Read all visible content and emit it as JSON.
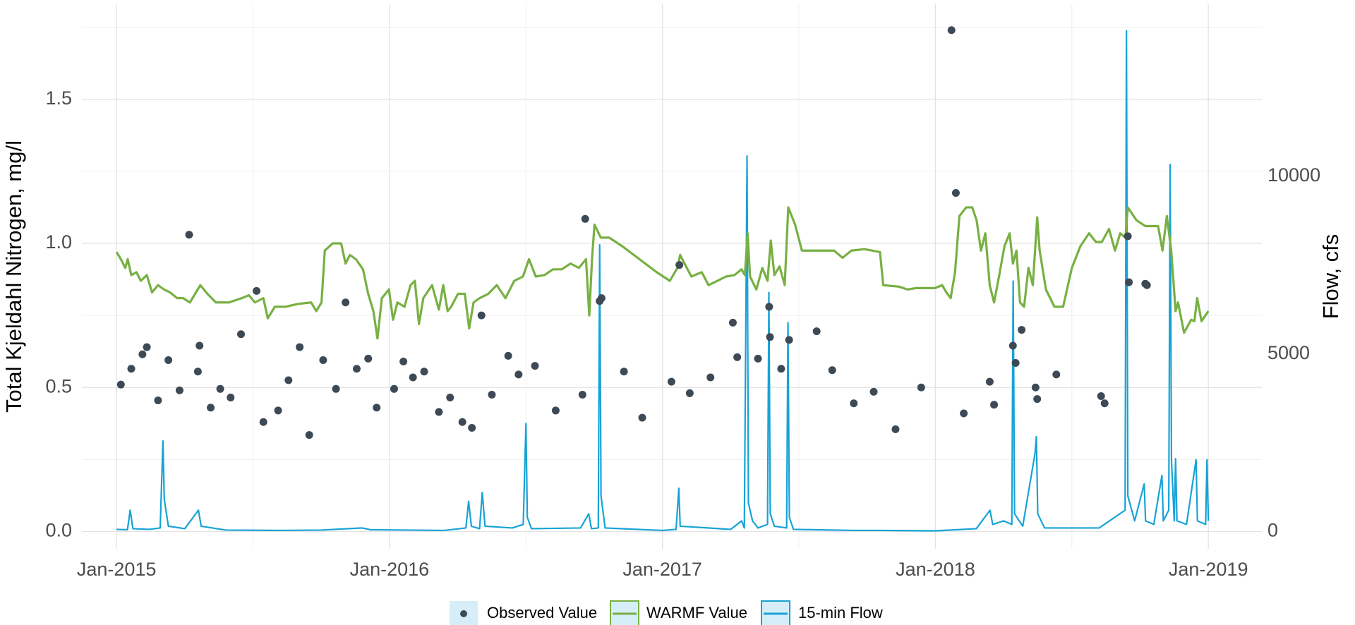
{
  "chart_data": {
    "type": "line",
    "y_title": "Total Kjeldahl Nitrogen, mg/l",
    "y2_title": "Flow, cfs",
    "xlim": [
      2014.873,
      2019.196
    ],
    "xticks": [
      {
        "value": 2015,
        "label": "Jan-2015"
      },
      {
        "value": 2016,
        "label": "Jan-2016"
      },
      {
        "value": 2017,
        "label": "Jan-2017"
      },
      {
        "value": 2018,
        "label": "Jan-2018"
      },
      {
        "value": 2019,
        "label": "Jan-2019"
      }
    ],
    "x_minor_grid": [
      2015.5,
      2016.5,
      2017.5,
      2018.5
    ],
    "ylim": [
      -0.06,
      1.83
    ],
    "yticks": [
      {
        "value": 0,
        "label": "0.0"
      },
      0.5,
      {
        "value": 1,
        "label": "1.0"
      },
      1.5
    ],
    "y_minor_grid": [
      0.25,
      0.75,
      1.25,
      1.75
    ],
    "y2lim": [
      -487,
      14842
    ],
    "y2ticks": [
      0,
      5000,
      10000
    ],
    "grid": true,
    "legend": "bottom",
    "series": [
      {
        "name": "Observed Value",
        "mark": "point",
        "color": "#3d4a56",
        "x": [
          2015.016,
          2015.054,
          2015.095,
          2015.111,
          2015.152,
          2015.19,
          2015.231,
          2015.266,
          2015.298,
          2015.304,
          2015.345,
          2015.38,
          2015.418,
          2015.456,
          2015.513,
          2015.538,
          2015.592,
          2015.63,
          2015.671,
          2015.706,
          2015.757,
          2015.804,
          2015.839,
          2015.88,
          2015.922,
          2015.953,
          2016.017,
          2016.051,
          2016.086,
          2016.127,
          2016.181,
          2016.222,
          2016.267,
          2016.302,
          2016.337,
          2016.375,
          2016.435,
          2016.473,
          2016.533,
          2016.609,
          2016.707,
          2016.717,
          2016.77,
          2016.777,
          2016.859,
          2016.926,
          2017.033,
          2017.062,
          2017.1,
          2017.176,
          2017.258,
          2017.274,
          2017.35,
          2017.391,
          2017.394,
          2017.435,
          2017.464,
          2017.565,
          2017.622,
          2017.701,
          2017.774,
          2017.854,
          2017.948,
          2018.059,
          2018.075,
          2018.104,
          2018.199,
          2018.215,
          2018.284,
          2018.294,
          2018.316,
          2018.367,
          2018.373,
          2018.443,
          2018.607,
          2018.62,
          2018.705,
          2018.709,
          2018.769,
          2018.775
        ],
        "values": [
          0.51,
          0.565,
          0.615,
          0.64,
          0.455,
          0.595,
          0.49,
          1.03,
          0.555,
          0.645,
          0.43,
          0.495,
          0.465,
          0.685,
          0.835,
          0.38,
          0.42,
          0.525,
          0.64,
          0.335,
          0.595,
          0.495,
          0.795,
          0.565,
          0.6,
          0.43,
          0.495,
          0.59,
          0.535,
          0.555,
          0.415,
          0.465,
          0.38,
          0.36,
          0.75,
          0.475,
          0.61,
          0.545,
          0.575,
          0.42,
          0.475,
          1.085,
          0.8,
          0.81,
          0.555,
          0.395,
          0.52,
          0.925,
          0.48,
          0.535,
          0.725,
          0.605,
          0.6,
          0.78,
          0.675,
          0.565,
          0.665,
          0.695,
          0.56,
          0.445,
          0.485,
          0.355,
          0.5,
          1.74,
          1.175,
          0.41,
          0.52,
          0.44,
          0.645,
          0.585,
          0.7,
          0.5,
          0.46,
          0.545,
          0.47,
          0.445,
          1.025,
          0.865,
          0.86,
          0.855
        ]
      },
      {
        "name": "WARMF Value",
        "mark": "line",
        "color": "#78b043",
        "x": [
          2015.0,
          2015.016,
          2015.032,
          2015.041,
          2015.054,
          2015.073,
          2015.089,
          2015.111,
          2015.13,
          2015.152,
          2015.174,
          2015.196,
          2015.222,
          2015.244,
          2015.269,
          2015.288,
          2015.307,
          2015.333,
          2015.364,
          2015.412,
          2015.459,
          2015.485,
          2015.507,
          2015.538,
          2015.554,
          2015.58,
          2015.618,
          2015.665,
          2015.713,
          2015.732,
          2015.751,
          2015.763,
          2015.792,
          2015.823,
          2015.839,
          2015.855,
          2015.877,
          2015.903,
          2015.922,
          2015.941,
          2015.956,
          2015.972,
          2015.998,
          2016.013,
          2016.029,
          2016.055,
          2016.077,
          2016.093,
          2016.108,
          2016.124,
          2016.156,
          2016.181,
          2016.197,
          2016.213,
          2016.226,
          2016.251,
          2016.276,
          2016.292,
          2016.308,
          2016.33,
          2016.362,
          2016.393,
          2016.425,
          2016.457,
          2016.489,
          2016.511,
          2016.536,
          2016.568,
          2016.599,
          2016.631,
          2016.663,
          2016.694,
          2016.72,
          2016.732,
          2016.742,
          2016.751,
          2016.774,
          2016.805,
          2016.853,
          2016.916,
          2016.979,
          2017.027,
          2017.055,
          2017.065,
          2017.081,
          2017.106,
          2017.144,
          2017.169,
          2017.201,
          2017.233,
          2017.264,
          2017.29,
          2017.302,
          2017.312,
          2017.321,
          2017.344,
          2017.366,
          2017.385,
          2017.397,
          2017.41,
          2017.429,
          2017.448,
          2017.461,
          2017.486,
          2017.511,
          2017.549,
          2017.587,
          2017.629,
          2017.66,
          2017.692,
          2017.74,
          2017.797,
          2017.809,
          2017.866,
          2017.898,
          2017.93,
          2017.977,
          2017.999,
          2018.025,
          2018.04,
          2018.056,
          2018.072,
          2018.088,
          2018.113,
          2018.135,
          2018.151,
          2018.167,
          2018.183,
          2018.199,
          2018.215,
          2018.234,
          2018.253,
          2018.272,
          2018.284,
          2018.297,
          2018.31,
          2018.325,
          2018.341,
          2018.357,
          2018.373,
          2018.382,
          2018.405,
          2018.436,
          2018.468,
          2018.5,
          2018.531,
          2018.563,
          2018.588,
          2018.61,
          2018.636,
          2018.658,
          2018.677,
          2018.696,
          2018.705,
          2018.737,
          2018.769,
          2018.816,
          2018.832,
          2018.848,
          2018.864,
          2018.88,
          2018.889,
          2018.911,
          2018.937,
          2018.949,
          2018.959,
          2018.975,
          2019.0
        ],
        "values": [
          0.97,
          0.945,
          0.915,
          0.945,
          0.89,
          0.9,
          0.87,
          0.89,
          0.83,
          0.855,
          0.84,
          0.83,
          0.81,
          0.81,
          0.795,
          0.825,
          0.855,
          0.825,
          0.795,
          0.795,
          0.81,
          0.82,
          0.795,
          0.81,
          0.74,
          0.78,
          0.78,
          0.79,
          0.795,
          0.765,
          0.795,
          0.975,
          1.0,
          1.0,
          0.93,
          0.96,
          0.945,
          0.91,
          0.825,
          0.765,
          0.67,
          0.81,
          0.84,
          0.735,
          0.795,
          0.78,
          0.855,
          0.87,
          0.72,
          0.81,
          0.855,
          0.77,
          0.855,
          0.765,
          0.78,
          0.825,
          0.825,
          0.705,
          0.795,
          0.81,
          0.825,
          0.855,
          0.81,
          0.87,
          0.885,
          0.945,
          0.885,
          0.89,
          0.91,
          0.91,
          0.93,
          0.915,
          0.945,
          0.75,
          0.945,
          1.065,
          1.02,
          1.02,
          0.99,
          0.945,
          0.9,
          0.87,
          0.915,
          0.96,
          0.93,
          0.885,
          0.9,
          0.855,
          0.87,
          0.885,
          0.89,
          0.91,
          0.89,
          1.035,
          0.885,
          0.84,
          0.915,
          0.87,
          1.01,
          0.89,
          0.92,
          0.855,
          1.125,
          1.065,
          0.975,
          0.975,
          0.975,
          0.975,
          0.95,
          0.975,
          0.98,
          0.97,
          0.855,
          0.85,
          0.84,
          0.845,
          0.845,
          0.845,
          0.855,
          0.83,
          0.81,
          0.9,
          1.095,
          1.125,
          1.125,
          1.08,
          0.975,
          1.035,
          0.855,
          0.795,
          0.89,
          0.99,
          1.035,
          0.93,
          0.975,
          0.795,
          0.78,
          0.915,
          0.855,
          1.09,
          0.975,
          0.84,
          0.78,
          0.78,
          0.915,
          0.99,
          1.035,
          1.005,
          1.005,
          1.05,
          0.975,
          1.035,
          1.02,
          1.125,
          1.08,
          1.06,
          1.06,
          0.975,
          1.095,
          0.975,
          0.765,
          0.795,
          0.69,
          0.735,
          0.73,
          0.81,
          0.73,
          0.765
        ]
      },
      {
        "name": "15-min Flow",
        "mark": "line",
        "axis": "y2",
        "color": "#17a3d6",
        "x": [
          2015.0,
          2015.04,
          2015.05,
          2015.06,
          2015.12,
          2015.16,
          2015.17,
          2015.175,
          2015.19,
          2015.25,
          2015.3,
          2015.31,
          2015.4,
          2015.6,
          2015.75,
          2015.9,
          2015.93,
          2016.2,
          2016.28,
          2016.29,
          2016.3,
          2016.33,
          2016.34,
          2016.35,
          2016.45,
          2016.49,
          2016.5,
          2016.505,
          2016.52,
          2016.7,
          2016.73,
          2016.74,
          2016.765,
          2016.77,
          2016.775,
          2016.79,
          2017.0,
          2017.05,
          2017.06,
          2017.065,
          2017.25,
          2017.29,
          2017.3,
          2017.31,
          2017.315,
          2017.33,
          2017.35,
          2017.385,
          2017.39,
          2017.395,
          2017.41,
          2017.455,
          2017.46,
          2017.465,
          2017.48,
          2017.7,
          2017.8,
          2018.0,
          2018.15,
          2018.2,
          2018.21,
          2018.25,
          2018.28,
          2018.285,
          2018.29,
          2018.32,
          2018.365,
          2018.37,
          2018.375,
          2018.4,
          2018.55,
          2018.6,
          2018.695,
          2018.7,
          2018.705,
          2018.73,
          2018.765,
          2018.77,
          2018.8,
          2018.83,
          2018.835,
          2018.855,
          2018.86,
          2018.865,
          2018.875,
          2018.88,
          2018.885,
          2018.92,
          2018.955,
          2018.96,
          2018.99,
          2018.995,
          2019.0
        ],
        "values": [
          60,
          50,
          600,
          80,
          60,
          100,
          2550,
          900,
          150,
          80,
          600,
          150,
          40,
          30,
          40,
          100,
          50,
          30,
          100,
          850,
          150,
          80,
          1100,
          150,
          100,
          200,
          3040,
          400,
          80,
          100,
          500,
          80,
          100,
          8070,
          1000,
          100,
          30,
          60,
          1215,
          150,
          60,
          300,
          100,
          10570,
          800,
          300,
          100,
          200,
          6730,
          500,
          150,
          100,
          5880,
          400,
          60,
          30,
          30,
          20,
          80,
          600,
          200,
          300,
          200,
          7050,
          500,
          150,
          2200,
          2670,
          500,
          100,
          100,
          100,
          600,
          14100,
          1000,
          300,
          1340,
          300,
          200,
          1580,
          300,
          600,
          10330,
          2000,
          300,
          2050,
          300,
          200,
          2020,
          300,
          200,
          2020,
          300
        ]
      }
    ]
  }
}
